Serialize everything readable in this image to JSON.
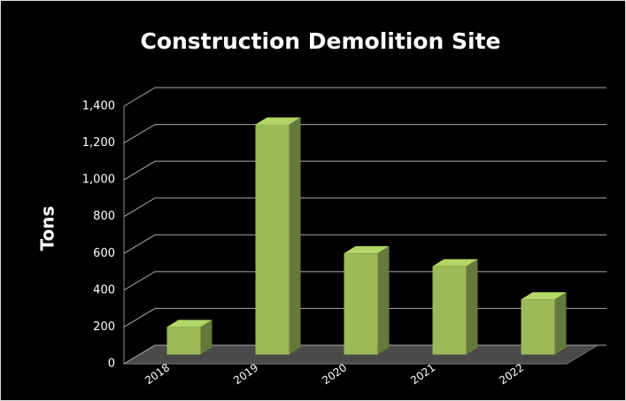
{
  "chart_data": {
    "type": "bar3d",
    "title": "Construction Demolition Site",
    "y_axis_label": "Tons",
    "categories": [
      "2018",
      "2019",
      "2020",
      "2021",
      "2022"
    ],
    "values": [
      150,
      1250,
      550,
      480,
      300
    ],
    "color": "#9bbb59",
    "ylim": [
      0,
      1400
    ],
    "yticks": [
      0,
      200,
      400,
      600,
      800,
      {
        "value": 1000,
        "label": "1,000"
      },
      {
        "value": 1200,
        "label": "1,200"
      },
      {
        "value": 1400,
        "label": "1,400"
      }
    ],
    "grid": true
  }
}
